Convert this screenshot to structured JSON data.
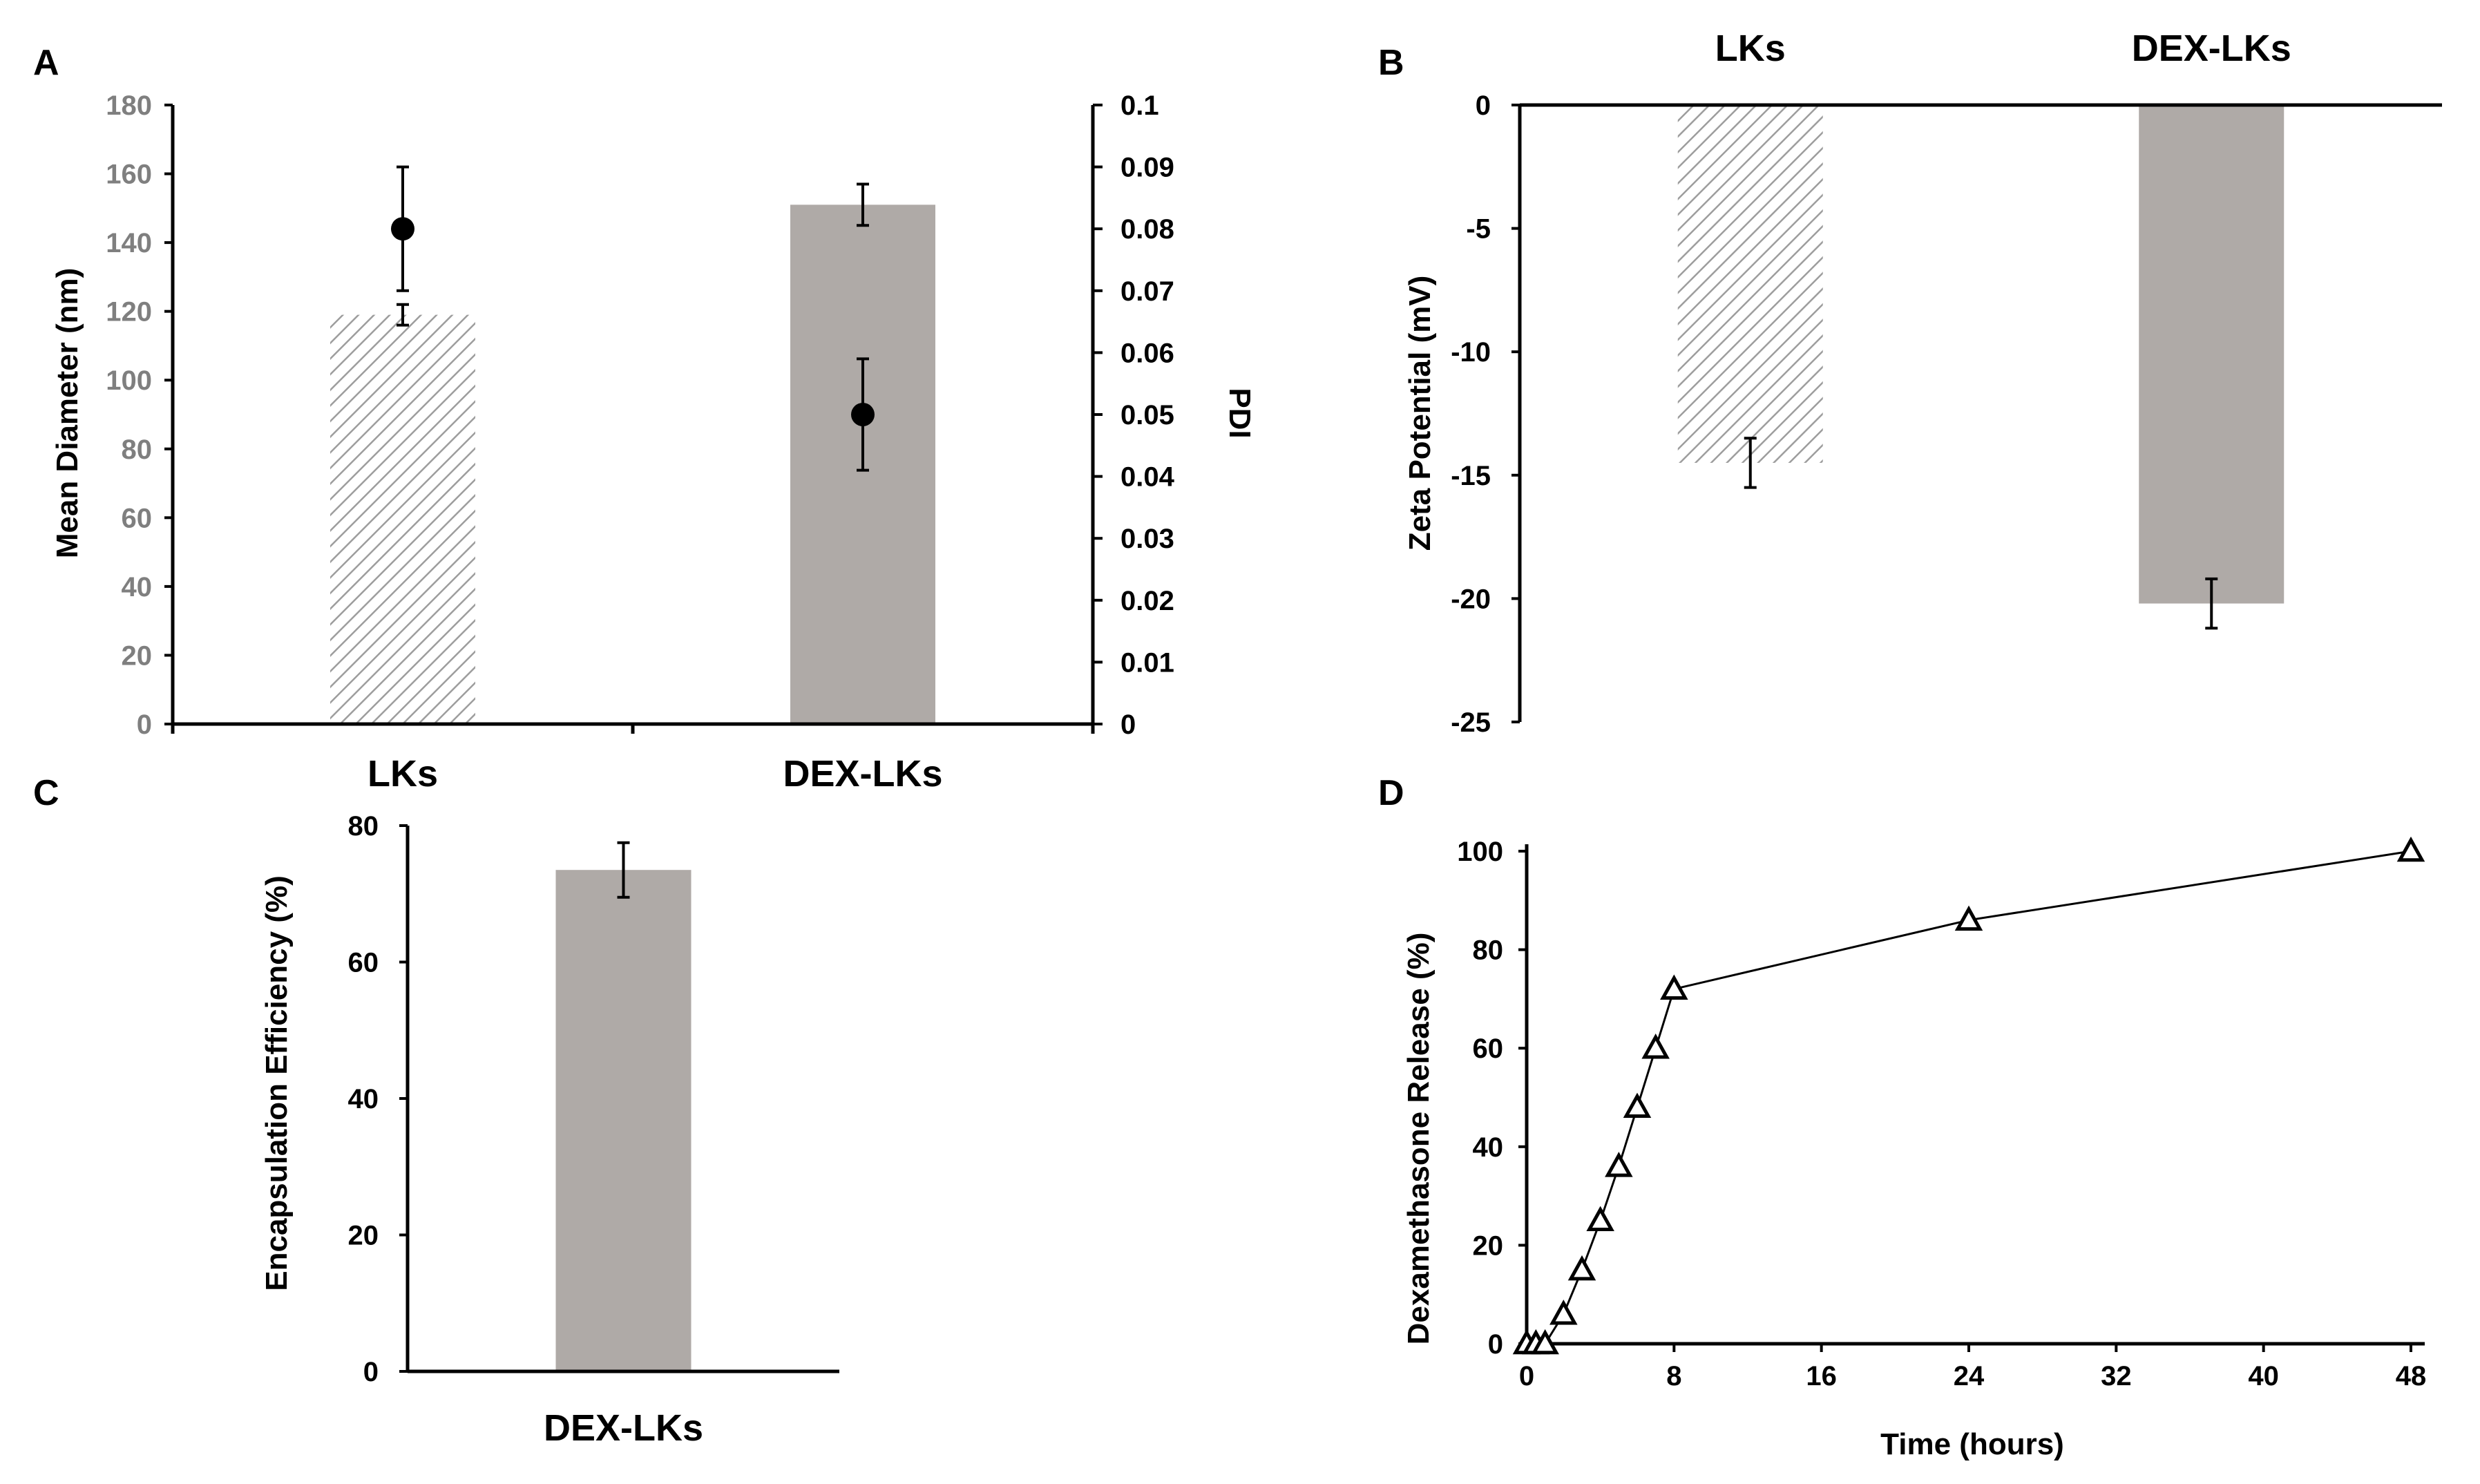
{
  "colors": {
    "bar_fill": "#afaaa7",
    "hatch_stroke": "#9d9d9d",
    "axis": "#000000",
    "left_tick_color": "#7f7f7f"
  },
  "chart_data": [
    {
      "panel": "A",
      "type": "bar",
      "categories": [
        "LKs",
        "DEX-LKs"
      ],
      "series": [
        {
          "axis": "left",
          "values": [
            119,
            151
          ],
          "error": [
            3,
            6
          ],
          "styles": [
            "hatched",
            "solid"
          ]
        },
        {
          "axis": "right",
          "marker": "circle",
          "values": [
            0.08,
            0.05
          ],
          "error": [
            0.01,
            0.009
          ]
        }
      ],
      "ylabel": "Mean Diameter (nm)",
      "ylim": [
        0,
        180
      ],
      "yticks": [
        "0",
        "20",
        "40",
        "60",
        "80",
        "100",
        "120",
        "140",
        "160",
        "180"
      ],
      "y2label": "PDI",
      "y2lim": [
        0,
        0.1
      ],
      "y2ticks": [
        "0",
        "0.01",
        "0.02",
        "0.03",
        "0.04",
        "0.05",
        "0.06",
        "0.07",
        "0.08",
        "0.09",
        "0.1"
      ],
      "grid": false
    },
    {
      "panel": "B",
      "type": "bar",
      "categories": [
        "LKs",
        "DEX-LKs"
      ],
      "values": [
        -14.5,
        -20.2
      ],
      "error": [
        1,
        1
      ],
      "styles": [
        "hatched",
        "solid"
      ],
      "ylabel": "Zeta Potential (mV)",
      "ylim": [
        -25,
        0
      ],
      "yticks": [
        "0",
        "-5",
        "-10",
        "-15",
        "-20",
        "-25"
      ],
      "grid": false
    },
    {
      "panel": "C",
      "type": "bar",
      "categories": [
        "DEX-LKs"
      ],
      "values": [
        73.5
      ],
      "error": [
        4
      ],
      "ylabel": "Encapsulation Efficiency (%)",
      "ylim": [
        0,
        80
      ],
      "yticks": [
        "0",
        "20",
        "40",
        "60",
        "80"
      ],
      "grid": false
    },
    {
      "panel": "D",
      "type": "line",
      "marker": "triangle",
      "x": [
        0,
        0.5,
        1,
        2,
        3,
        4,
        5,
        6,
        7,
        8,
        24,
        48
      ],
      "values": [
        0,
        0,
        0,
        6,
        15,
        25,
        36,
        48,
        60,
        72,
        86,
        100
      ],
      "xlabel": "Time (hours)",
      "xlim": [
        0,
        48
      ],
      "xticks": [
        "0",
        "8",
        "16",
        "24",
        "32",
        "40",
        "48"
      ],
      "ylabel": "Dexamethasone Release (%)",
      "ylim": [
        0,
        100
      ],
      "yticks": [
        "0",
        "20",
        "40",
        "60",
        "80",
        "100"
      ],
      "grid": false
    }
  ]
}
